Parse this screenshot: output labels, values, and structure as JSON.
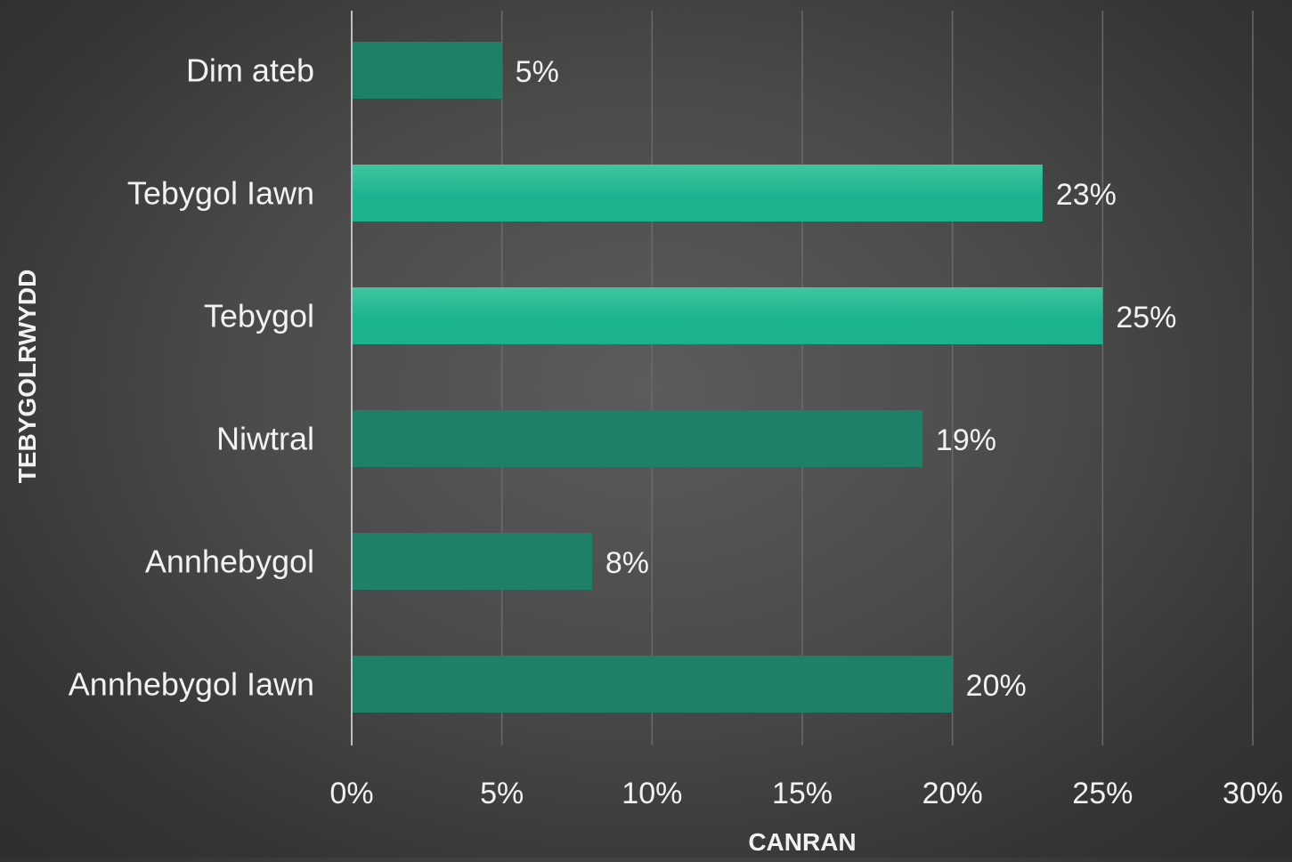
{
  "chart_data": {
    "type": "bar",
    "orientation": "horizontal",
    "categories": [
      "Dim ateb",
      "Tebygol Iawn",
      "Tebygol",
      "Niwtral",
      "Annhebygol",
      "Annhebygol Iawn"
    ],
    "values": [
      5,
      23,
      25,
      19,
      8,
      20
    ],
    "data_labels": [
      "5%",
      "23%",
      "25%",
      "19%",
      "8%",
      "20%"
    ],
    "highlighted": [
      false,
      true,
      true,
      false,
      false,
      false
    ],
    "xlabel": "CANRAN",
    "ylabel": "TEBYGOLRWYDD",
    "xlim": [
      0,
      30
    ],
    "xticks": [
      0,
      5,
      10,
      15,
      20,
      25,
      30
    ],
    "xtick_labels": [
      "0%",
      "5%",
      "10%",
      "15%",
      "20%",
      "25%",
      "30%"
    ],
    "grid": "vertical",
    "legend": "none",
    "colors": {
      "bar": "#1f8068",
      "bar_highlight": "#1bb38e",
      "bar_highlight_top": "#3ec6a0",
      "gridline": "#6a6a6a",
      "axis_line": "#bfbfbf",
      "text": "#f2f2f2"
    }
  }
}
